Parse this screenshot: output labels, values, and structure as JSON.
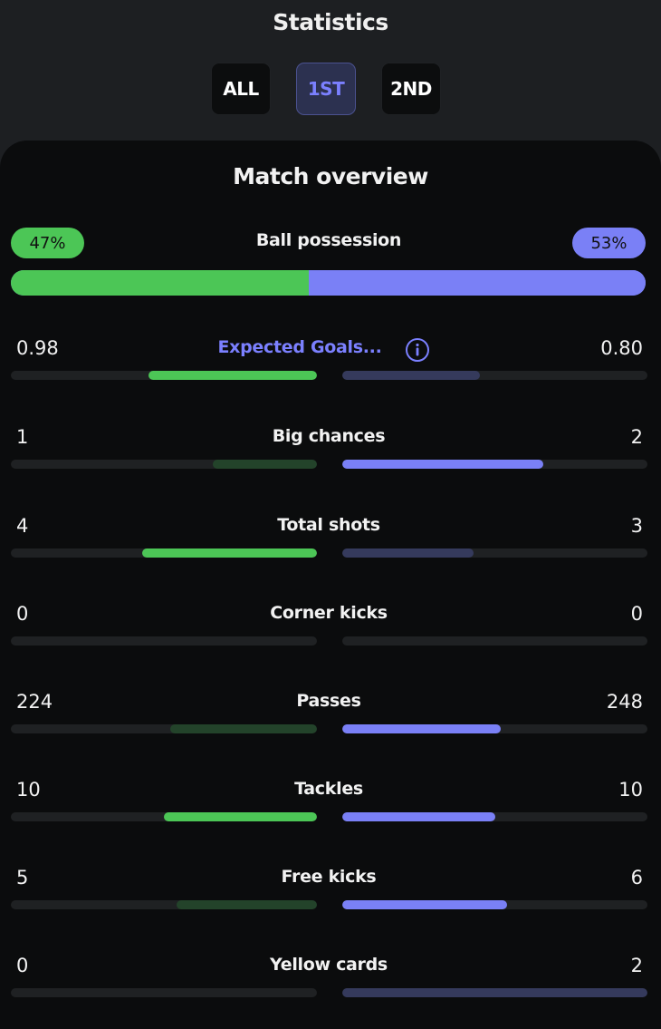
{
  "header": {
    "title": "Statistics"
  },
  "period_tabs": [
    {
      "label": "ALL",
      "active": false
    },
    {
      "label": "1ST",
      "active": true
    },
    {
      "label": "2ND",
      "active": false
    }
  ],
  "overview": {
    "title": "Match overview",
    "possession": {
      "label": "Ball possession",
      "home": "47%",
      "away": "53%",
      "home_fraction": 0.47
    },
    "stats": [
      {
        "label": "Expected Goals...",
        "home": "0.98",
        "away": "0.80",
        "home_fill": 0.55,
        "away_fill": 0.45,
        "home_strong": true,
        "away_strong": false,
        "link": true,
        "has_info": true
      },
      {
        "label": "Big chances",
        "home": "1",
        "away": "2",
        "home_fill": 0.34,
        "away_fill": 0.66,
        "home_strong": false,
        "away_strong": true,
        "link": false,
        "has_info": false
      },
      {
        "label": "Total shots",
        "home": "4",
        "away": "3",
        "home_fill": 0.57,
        "away_fill": 0.43,
        "home_strong": true,
        "away_strong": false,
        "link": false,
        "has_info": false
      },
      {
        "label": "Corner kicks",
        "home": "0",
        "away": "0",
        "home_fill": 0,
        "away_fill": 0,
        "home_strong": false,
        "away_strong": false,
        "link": false,
        "has_info": false
      },
      {
        "label": "Passes",
        "home": "224",
        "away": "248",
        "home_fill": 0.48,
        "away_fill": 0.52,
        "home_strong": false,
        "away_strong": true,
        "link": false,
        "has_info": false
      },
      {
        "label": "Tackles",
        "home": "10",
        "away": "10",
        "home_fill": 0.5,
        "away_fill": 0.5,
        "home_strong": true,
        "away_strong": true,
        "link": false,
        "has_info": false
      },
      {
        "label": "Free kicks",
        "home": "5",
        "away": "6",
        "home_fill": 0.46,
        "away_fill": 0.54,
        "home_strong": false,
        "away_strong": true,
        "link": false,
        "has_info": false
      },
      {
        "label": "Yellow cards",
        "home": "0",
        "away": "2",
        "home_fill": 0,
        "away_fill": 1.0,
        "home_strong": false,
        "away_strong": false,
        "link": false,
        "has_info": false
      }
    ]
  },
  "colors": {
    "home_strong": "#4cc656",
    "home_weak": "#23432a",
    "away_strong": "#7a80f6",
    "away_weak": "#353a5c",
    "link": "#7b80ff",
    "info_icon": "info-circle-icon"
  }
}
